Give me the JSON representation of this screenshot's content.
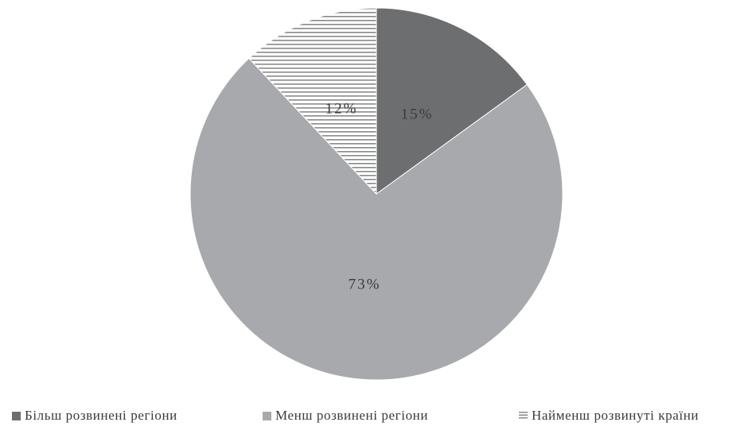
{
  "chart_data": {
    "type": "pie",
    "title": "",
    "slices": [
      {
        "label": "Більш розвинені регіони",
        "value": 15,
        "display": "15%",
        "color": "#6d6e70",
        "pattern": "solid"
      },
      {
        "label": "Менш розвинені регіони",
        "value": 73,
        "display": "73%",
        "color": "#a7a9ac",
        "pattern": "solid"
      },
      {
        "label": "Найменш розвинуті країни",
        "value": 12,
        "display": "12%",
        "color": "#8a8a8a",
        "pattern": "horizontal-stripes"
      }
    ],
    "start_angle": "12 o'clock",
    "direction": "clockwise",
    "legend_position": "bottom"
  }
}
